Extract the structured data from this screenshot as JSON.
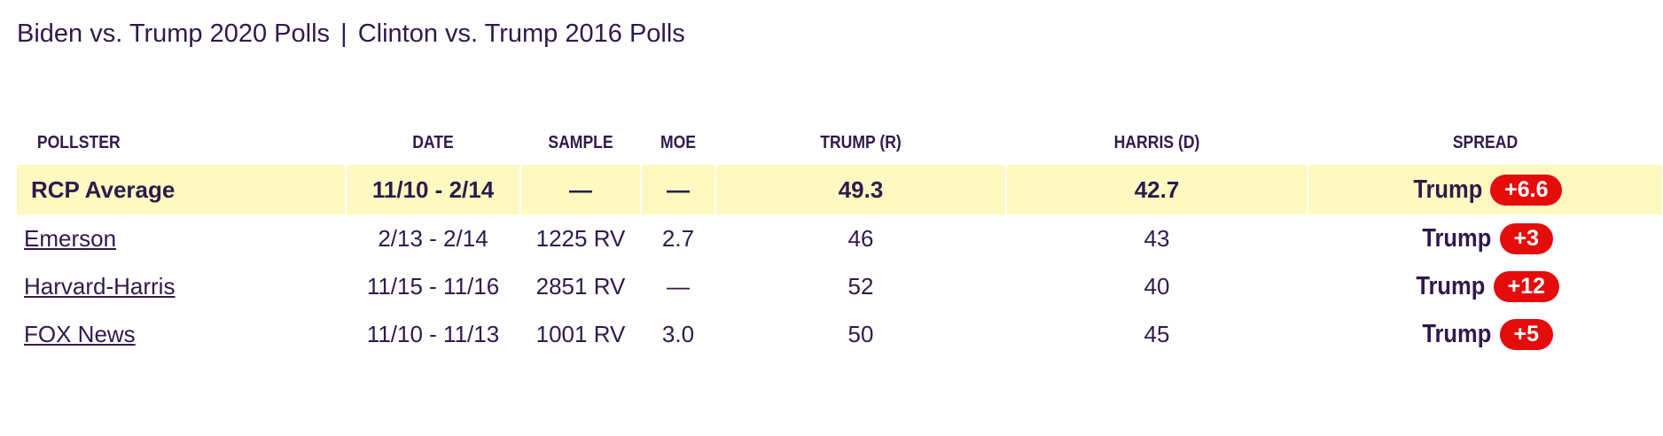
{
  "top_links": [
    {
      "label": "Biden vs. Trump 2020 Polls"
    },
    {
      "label": "Clinton vs. Trump 2016 Polls"
    }
  ],
  "separator": "|",
  "table": {
    "columns": [
      "POLLSTER",
      "DATE",
      "SAMPLE",
      "MOE",
      "TRUMP (R)",
      "HARRIS (D)",
      "SPREAD"
    ],
    "average": {
      "pollster": "RCP Average",
      "date": "11/10 - 2/14",
      "sample": "—",
      "moe": "—",
      "trump": "49.3",
      "harris": "42.7",
      "spread_leader": "Trump",
      "spread_value": "+6.6"
    },
    "rows": [
      {
        "pollster": "Emerson",
        "date": "2/13 - 2/14",
        "sample": "1225 RV",
        "moe": "2.7",
        "trump": "46",
        "harris": "43",
        "spread_leader": "Trump",
        "spread_value": "+3"
      },
      {
        "pollster": "Harvard-Harris",
        "date": "11/15 - 11/16",
        "sample": "2851 RV",
        "moe": "—",
        "trump": "52",
        "harris": "40",
        "spread_leader": "Trump",
        "spread_value": "+12"
      },
      {
        "pollster": "FOX News",
        "date": "11/10 - 11/13",
        "sample": "1001 RV",
        "moe": "3.0",
        "trump": "50",
        "harris": "45",
        "spread_leader": "Trump",
        "spread_value": "+5"
      }
    ]
  },
  "colors": {
    "text": "#2f1a4d",
    "average_row_bg": "#fdf9c0",
    "republican_badge": "#e50c0c"
  }
}
